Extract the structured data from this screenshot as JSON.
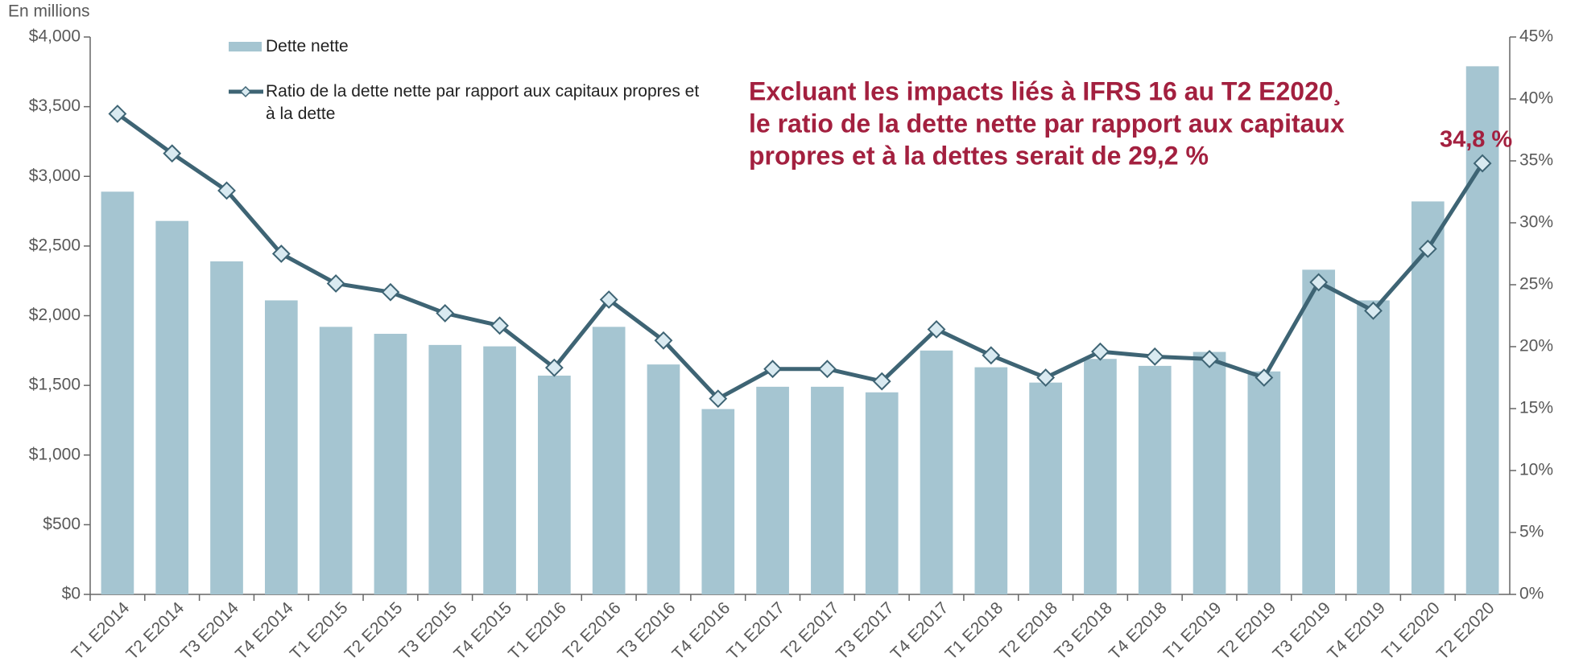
{
  "chart_data": {
    "type": "bar_line",
    "y_axis_label": "En millions",
    "annotation": [
      "Excluant les impacts liés à IFRS 16 au T2 E2020¸",
      "le ratio de la dette nette par rapport aux capitaux",
      "propres et à la dettes serait de 29,2 %"
    ],
    "categories": [
      "T1 E2014",
      "T2 E2014",
      "T3 E2014",
      "T4 E2014",
      "T1 E2015",
      "T2 E2015",
      "T3 E2015",
      "T4 E2015",
      "T1 E2016",
      "T2 E2016",
      "T3 E2016",
      "T4 E2016",
      "T1 E2017",
      "T2 E2017",
      "T3 E2017",
      "T4 E2017",
      "T1 E2018",
      "T2 E2018",
      "T3 E2018",
      "T4 E2018",
      "T1 E2019",
      "T2 E2019",
      "T3 E2019",
      "T4 E2019",
      "T1 E2020",
      "T2 E2020"
    ],
    "series": [
      {
        "name": "Dette nette",
        "type": "bar",
        "color": "#a5c5d1",
        "axis": "y",
        "values": [
          2890,
          2680,
          2390,
          2110,
          1920,
          1870,
          1790,
          1780,
          1570,
          1920,
          1650,
          1330,
          1490,
          1490,
          1450,
          1750,
          1630,
          1520,
          1690,
          1640,
          1740,
          1600,
          2330,
          2110,
          2820,
          3790
        ]
      },
      {
        "name": "Ratio de la dette nette par rapport aux capitaux propres et à la dette",
        "type": "line",
        "color": "#3e6474",
        "marker_fill": "#d9eaf1",
        "axis": "y2",
        "values": [
          38.8,
          35.6,
          32.6,
          27.5,
          25.1,
          24.4,
          22.7,
          21.7,
          18.3,
          23.8,
          20.5,
          15.8,
          18.2,
          18.2,
          17.2,
          21.4,
          19.3,
          17.5,
          19.6,
          19.2,
          19.0,
          17.5,
          25.2,
          22.9,
          27.9,
          34.8
        ],
        "value_labels": [
          null,
          null,
          null,
          null,
          null,
          null,
          null,
          null,
          null,
          null,
          null,
          null,
          null,
          null,
          null,
          null,
          null,
          null,
          null,
          null,
          null,
          null,
          null,
          null,
          null,
          "34,8 %"
        ]
      }
    ],
    "ylim": [
      0,
      4000
    ],
    "yticks": [
      {
        "value": 0,
        "label": "$0"
      },
      {
        "value": 500,
        "label": "$500"
      },
      {
        "value": 1000,
        "label": "$1,000"
      },
      {
        "value": 1500,
        "label": "$1,500"
      },
      {
        "value": 2000,
        "label": "$2,000"
      },
      {
        "value": 2500,
        "label": "$2,500"
      },
      {
        "value": 3000,
        "label": "$3,000"
      },
      {
        "value": 3500,
        "label": "$3,500"
      },
      {
        "value": 4000,
        "label": "$4,000"
      }
    ],
    "y2lim": [
      0,
      45
    ],
    "y2ticks": [
      {
        "value": 0,
        "label": "0%"
      },
      {
        "value": 5,
        "label": "5%"
      },
      {
        "value": 10,
        "label": "10%"
      },
      {
        "value": 15,
        "label": "15%"
      },
      {
        "value": 20,
        "label": "20%"
      },
      {
        "value": 25,
        "label": "25%"
      },
      {
        "value": 30,
        "label": "30%"
      },
      {
        "value": 35,
        "label": "35%"
      },
      {
        "value": 40,
        "label": "40%"
      },
      {
        "value": 45,
        "label": "45%"
      }
    ],
    "annotation_color": "#a3203f",
    "legend": "top-left"
  }
}
